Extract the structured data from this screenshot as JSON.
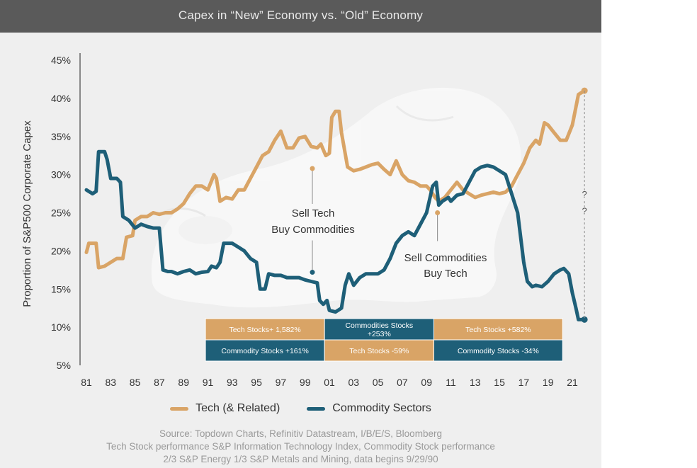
{
  "header": {
    "subtitle": "Capex in “New” Economy vs. “Old” Economy"
  },
  "colors": {
    "tech": "#d9a466",
    "commodity": "#1e5f78",
    "box_tech": "#d9a466",
    "box_commodity": "#1e5f78",
    "background": "#efefef"
  },
  "chart_data": {
    "type": "line",
    "ylabel": "Proportion of S&P500 Corporate Capex",
    "ylim": [
      5,
      45
    ],
    "yticks": [
      "5%",
      "10%",
      "15%",
      "20%",
      "25%",
      "30%",
      "35%",
      "40%",
      "45%"
    ],
    "xticks": [
      "81",
      "83",
      "85",
      "87",
      "89",
      "91",
      "93",
      "95",
      "97",
      "99",
      "01",
      "03",
      "05",
      "07",
      "09",
      "11",
      "13",
      "15",
      "17",
      "19",
      "21"
    ],
    "grid": false,
    "legend_position": "bottom",
    "series": [
      {
        "name": "Tech (& Related)",
        "color": "#d9a466",
        "points": [
          [
            1981.0,
            19.8
          ],
          [
            1981.2,
            21.0
          ],
          [
            1981.8,
            21.0
          ],
          [
            1982.0,
            17.8
          ],
          [
            1982.5,
            18.0
          ],
          [
            1983.0,
            18.5
          ],
          [
            1983.5,
            19.0
          ],
          [
            1984.0,
            19.0
          ],
          [
            1984.3,
            21.8
          ],
          [
            1984.8,
            22.0
          ],
          [
            1985.0,
            24.0
          ],
          [
            1985.5,
            24.5
          ],
          [
            1986.0,
            24.5
          ],
          [
            1986.5,
            25.0
          ],
          [
            1987.0,
            24.8
          ],
          [
            1987.5,
            25.0
          ],
          [
            1988.0,
            25.0
          ],
          [
            1988.5,
            25.5
          ],
          [
            1989.0,
            26.2
          ],
          [
            1989.5,
            27.5
          ],
          [
            1990.0,
            28.5
          ],
          [
            1990.5,
            28.5
          ],
          [
            1991.0,
            28.0
          ],
          [
            1991.5,
            30.0
          ],
          [
            1991.7,
            29.5
          ],
          [
            1992.0,
            26.5
          ],
          [
            1992.5,
            27.0
          ],
          [
            1993.0,
            26.8
          ],
          [
            1993.5,
            28.0
          ],
          [
            1994.0,
            28.0
          ],
          [
            1994.5,
            29.5
          ],
          [
            1995.0,
            31.0
          ],
          [
            1995.5,
            32.5
          ],
          [
            1996.0,
            33.0
          ],
          [
            1996.5,
            34.5
          ],
          [
            1997.0,
            35.7
          ],
          [
            1997.5,
            33.5
          ],
          [
            1998.0,
            33.5
          ],
          [
            1998.5,
            34.8
          ],
          [
            1999.0,
            35.0
          ],
          [
            1999.5,
            33.7
          ],
          [
            2000.0,
            33.5
          ],
          [
            2000.3,
            34.0
          ],
          [
            2000.7,
            32.5
          ],
          [
            2001.0,
            32.8
          ],
          [
            2001.2,
            37.5
          ],
          [
            2001.5,
            38.3
          ],
          [
            2001.8,
            38.3
          ],
          [
            2002.0,
            35.5
          ],
          [
            2002.5,
            31.0
          ],
          [
            2003.0,
            30.5
          ],
          [
            2003.5,
            30.7
          ],
          [
            2004.0,
            31.0
          ],
          [
            2004.5,
            31.3
          ],
          [
            2005.0,
            31.5
          ],
          [
            2005.5,
            30.7
          ],
          [
            2006.0,
            30.0
          ],
          [
            2006.5,
            31.8
          ],
          [
            2007.0,
            30.0
          ],
          [
            2007.5,
            29.2
          ],
          [
            2008.0,
            29.0
          ],
          [
            2008.5,
            28.5
          ],
          [
            2009.0,
            28.5
          ],
          [
            2009.3,
            28.0
          ],
          [
            2009.7,
            27.0
          ],
          [
            2010.0,
            26.5
          ],
          [
            2010.5,
            27.0
          ],
          [
            2011.0,
            28.0
          ],
          [
            2011.5,
            29.0
          ],
          [
            2012.0,
            28.0
          ],
          [
            2012.5,
            27.5
          ],
          [
            2013.0,
            27.0
          ],
          [
            2013.5,
            27.3
          ],
          [
            2014.0,
            27.5
          ],
          [
            2014.5,
            27.7
          ],
          [
            2015.0,
            27.5
          ],
          [
            2015.5,
            27.7
          ],
          [
            2016.0,
            28.5
          ],
          [
            2016.5,
            30.0
          ],
          [
            2017.0,
            31.5
          ],
          [
            2017.5,
            33.5
          ],
          [
            2018.0,
            34.5
          ],
          [
            2018.3,
            34.0
          ],
          [
            2018.7,
            36.8
          ],
          [
            2019.0,
            36.5
          ],
          [
            2019.5,
            35.5
          ],
          [
            2020.0,
            34.5
          ],
          [
            2020.5,
            34.5
          ],
          [
            2021.0,
            36.5
          ],
          [
            2021.5,
            40.5
          ],
          [
            2022.0,
            41.0
          ]
        ]
      },
      {
        "name": "Commodity Sectors",
        "color": "#1e5f78",
        "points": [
          [
            1981.0,
            28.0
          ],
          [
            1981.5,
            27.5
          ],
          [
            1981.8,
            27.8
          ],
          [
            1982.0,
            33.0
          ],
          [
            1982.5,
            33.0
          ],
          [
            1982.7,
            32.0
          ],
          [
            1983.0,
            29.5
          ],
          [
            1983.5,
            29.5
          ],
          [
            1983.8,
            29.0
          ],
          [
            1984.0,
            24.5
          ],
          [
            1984.5,
            24.0
          ],
          [
            1985.0,
            23.0
          ],
          [
            1985.5,
            23.5
          ],
          [
            1986.0,
            23.2
          ],
          [
            1986.5,
            23.0
          ],
          [
            1987.0,
            23.0
          ],
          [
            1987.3,
            17.5
          ],
          [
            1987.7,
            17.3
          ],
          [
            1988.0,
            17.3
          ],
          [
            1988.5,
            17.0
          ],
          [
            1989.0,
            17.3
          ],
          [
            1989.5,
            17.5
          ],
          [
            1990.0,
            17.0
          ],
          [
            1990.5,
            17.2
          ],
          [
            1991.0,
            17.3
          ],
          [
            1991.3,
            18.0
          ],
          [
            1991.7,
            17.8
          ],
          [
            1992.0,
            18.5
          ],
          [
            1992.3,
            21.0
          ],
          [
            1993.0,
            21.0
          ],
          [
            1993.5,
            20.5
          ],
          [
            1994.0,
            20.0
          ],
          [
            1994.5,
            19.0
          ],
          [
            1995.0,
            18.5
          ],
          [
            1995.3,
            15.0
          ],
          [
            1995.7,
            15.0
          ],
          [
            1996.0,
            17.0
          ],
          [
            1996.5,
            16.8
          ],
          [
            1997.0,
            16.8
          ],
          [
            1997.5,
            16.5
          ],
          [
            1998.0,
            16.5
          ],
          [
            1998.5,
            16.5
          ],
          [
            1999.0,
            16.2
          ],
          [
            1999.5,
            16.0
          ],
          [
            2000.0,
            15.8
          ],
          [
            2000.2,
            13.5
          ],
          [
            2000.5,
            13.0
          ],
          [
            2000.8,
            13.5
          ],
          [
            2001.0,
            12.2
          ],
          [
            2001.5,
            12.0
          ],
          [
            2002.0,
            12.5
          ],
          [
            2002.3,
            15.5
          ],
          [
            2002.6,
            17.0
          ],
          [
            2003.0,
            15.5
          ],
          [
            2003.5,
            16.5
          ],
          [
            2004.0,
            17.0
          ],
          [
            2004.5,
            17.0
          ],
          [
            2005.0,
            17.0
          ],
          [
            2005.5,
            17.5
          ],
          [
            2006.0,
            19.0
          ],
          [
            2006.5,
            21.0
          ],
          [
            2007.0,
            22.0
          ],
          [
            2007.5,
            22.5
          ],
          [
            2008.0,
            22.0
          ],
          [
            2008.5,
            23.5
          ],
          [
            2009.0,
            25.0
          ],
          [
            2009.5,
            28.5
          ],
          [
            2009.8,
            29.0
          ],
          [
            2010.0,
            26.0
          ],
          [
            2010.3,
            26.5
          ],
          [
            2010.8,
            27.0
          ],
          [
            2011.0,
            26.5
          ],
          [
            2011.5,
            27.3
          ],
          [
            2012.0,
            27.5
          ],
          [
            2012.5,
            29.0
          ],
          [
            2013.0,
            30.5
          ],
          [
            2013.5,
            31.0
          ],
          [
            2014.0,
            31.2
          ],
          [
            2014.5,
            31.0
          ],
          [
            2015.0,
            30.5
          ],
          [
            2015.5,
            30.0
          ],
          [
            2016.0,
            27.5
          ],
          [
            2016.5,
            25.0
          ],
          [
            2017.0,
            18.5
          ],
          [
            2017.3,
            16.0
          ],
          [
            2017.7,
            15.3
          ],
          [
            2018.0,
            15.5
          ],
          [
            2018.5,
            15.3
          ],
          [
            2019.0,
            16.0
          ],
          [
            2019.5,
            17.0
          ],
          [
            2020.0,
            17.5
          ],
          [
            2020.3,
            17.7
          ],
          [
            2020.7,
            17.0
          ],
          [
            2021.0,
            14.5
          ],
          [
            2021.3,
            12.5
          ],
          [
            2021.5,
            11.0
          ],
          [
            2022.0,
            11.0
          ]
        ]
      }
    ],
    "annotations": [
      {
        "lines": [
          "Sell Tech",
          "Buy Commodities"
        ],
        "year": 1999.6,
        "dot_upper": 30.8,
        "dot_lower": 17.2
      },
      {
        "lines": [
          "Sell Commodities",
          "Buy Tech"
        ],
        "year": 2009.9,
        "dot": 25.0
      },
      {
        "text": "?",
        "value": 27.0
      },
      {
        "text": "?",
        "value": 24.8
      }
    ],
    "performance_table": [
      [
        {
          "text": "Tech Stocks+ 1,582%",
          "kind": "tech"
        },
        {
          "text": "Commodities Stocks +253%",
          "kind": "commodity"
        },
        {
          "text": "Tech Stocks +582%",
          "kind": "tech"
        }
      ],
      [
        {
          "text": "Commodity Stocks +161%",
          "kind": "commodity"
        },
        {
          "text": "Tech Stocks -59%",
          "kind": "tech"
        },
        {
          "text": "Commodity Stocks -34%",
          "kind": "commodity"
        }
      ]
    ]
  },
  "legend": {
    "tech": "Tech (& Related)",
    "commodity": "Commodity Sectors"
  },
  "source": {
    "line1": "Source: Topdown Charts, Refinitiv Datastream, I/B/E/S, Bloomberg",
    "line2": "Tech Stock performance S&P Information Technology Index, Commodity Stock performance",
    "line3": "2/3 S&P Energy 1/3 S&P Metals and Mining, data begins 9/29/90"
  }
}
